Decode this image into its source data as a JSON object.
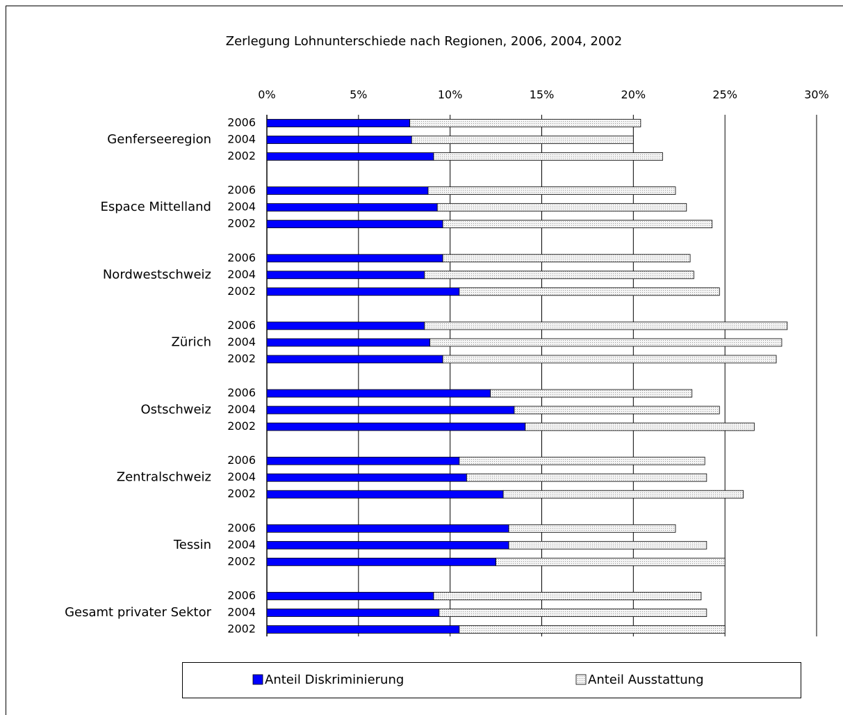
{
  "chart_data": {
    "type": "stacked-bar-horizontal",
    "title": "Zerlegung Lohnunterschiede nach Regionen, 2006, 2004, 2002",
    "group_labels": [
      "Genferseeregion",
      "Espace Mittelland",
      "Nordwestschweiz",
      "Zürich",
      "Ostschweiz",
      "Zentralschweiz",
      "Tessin",
      "Gesamt privater Sektor"
    ],
    "categories": [
      "2006",
      "2004",
      "2002",
      "2006",
      "2004",
      "2002",
      "2006",
      "2004",
      "2002",
      "2006",
      "2004",
      "2002",
      "2006",
      "2004",
      "2002",
      "2006",
      "2004",
      "2002",
      "2006",
      "2004",
      "2002",
      "2006",
      "2004",
      "2002"
    ],
    "series": [
      {
        "name": "Anteil Diskriminierung",
        "color": "#0000ff",
        "values": [
          7.8,
          7.9,
          9.1,
          8.8,
          9.3,
          9.6,
          9.6,
          8.6,
          10.5,
          8.6,
          8.9,
          9.6,
          12.2,
          13.5,
          14.1,
          10.5,
          10.9,
          12.9,
          13.2,
          13.2,
          12.5,
          9.1,
          9.4,
          10.5
        ]
      },
      {
        "name": "Anteil Ausstattung",
        "color": "#e6e6e6",
        "values": [
          12.6,
          12.1,
          12.5,
          13.5,
          13.6,
          14.7,
          13.5,
          14.7,
          14.2,
          19.8,
          19.2,
          18.2,
          11.0,
          11.2,
          12.5,
          13.4,
          13.1,
          13.1,
          9.1,
          10.8,
          12.5,
          14.6,
          14.6,
          14.5
        ]
      }
    ],
    "xlim": [
      0,
      30
    ],
    "xticks": [
      {
        "value": 0,
        "label": "0%"
      },
      {
        "value": 5,
        "label": "5%"
      },
      {
        "value": 10,
        "label": "10%"
      },
      {
        "value": 15,
        "label": "15%"
      },
      {
        "value": 20,
        "label": "20%"
      },
      {
        "value": 25,
        "label": "25%"
      },
      {
        "value": 30,
        "label": "30%"
      }
    ],
    "grid": true,
    "legend": "bottom"
  }
}
